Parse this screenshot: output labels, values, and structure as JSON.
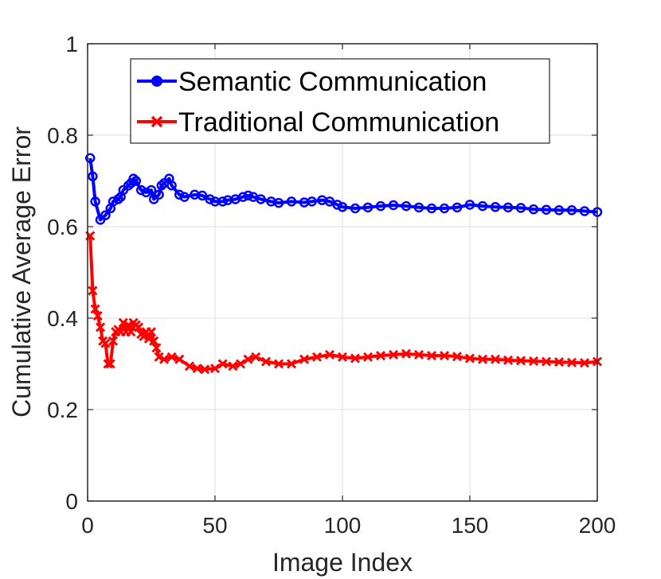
{
  "chart_data": {
    "type": "line",
    "xlabel": "Image Index",
    "ylabel": "Cumulative Average Error",
    "xlim": [
      0,
      200
    ],
    "ylim": [
      0,
      1
    ],
    "xticks": [
      0,
      50,
      100,
      150,
      200
    ],
    "xtick_labels": [
      "0",
      "50",
      "100",
      "150",
      "200"
    ],
    "yticks": [
      0,
      0.2,
      0.4,
      0.6,
      0.8,
      1
    ],
    "ytick_labels": [
      "0",
      "0.2",
      "0.4",
      "0.6",
      "0.8",
      "1"
    ],
    "grid": true,
    "legend_position": "top-center",
    "series": [
      {
        "name": "Semantic Communication",
        "color": "#0000ff",
        "marker": "circle",
        "x": [
          1,
          2,
          3,
          5,
          7,
          9,
          10,
          12,
          13,
          14,
          16,
          17,
          18,
          19,
          21,
          23,
          25,
          26,
          28,
          29,
          30,
          32,
          33,
          36,
          38,
          42,
          45,
          48,
          50,
          53,
          55,
          58,
          61,
          63,
          65,
          68,
          72,
          75,
          80,
          85,
          88,
          92,
          95,
          98,
          100,
          105,
          110,
          115,
          120,
          125,
          130,
          135,
          140,
          145,
          150,
          155,
          160,
          165,
          170,
          175,
          180,
          185,
          190,
          195,
          200
        ],
        "values": [
          0.75,
          0.71,
          0.655,
          0.615,
          0.625,
          0.64,
          0.655,
          0.66,
          0.665,
          0.68,
          0.69,
          0.695,
          0.705,
          0.7,
          0.68,
          0.675,
          0.68,
          0.66,
          0.67,
          0.69,
          0.695,
          0.705,
          0.69,
          0.67,
          0.665,
          0.67,
          0.668,
          0.66,
          0.655,
          0.655,
          0.658,
          0.66,
          0.665,
          0.668,
          0.665,
          0.66,
          0.655,
          0.652,
          0.655,
          0.653,
          0.655,
          0.658,
          0.655,
          0.648,
          0.643,
          0.64,
          0.642,
          0.645,
          0.647,
          0.645,
          0.642,
          0.64,
          0.64,
          0.642,
          0.648,
          0.645,
          0.643,
          0.642,
          0.641,
          0.638,
          0.637,
          0.636,
          0.636,
          0.634,
          0.632
        ]
      },
      {
        "name": "Traditional Communication",
        "color": "#ff0000",
        "marker": "x",
        "x": [
          1,
          2,
          3,
          4,
          5,
          6,
          7,
          8,
          9,
          10,
          11,
          12,
          13,
          14,
          15,
          16,
          17,
          18,
          19,
          20,
          21,
          22,
          23,
          24,
          25,
          26,
          27,
          28,
          30,
          33,
          36,
          40,
          43,
          46,
          50,
          53,
          57,
          60,
          63,
          66,
          70,
          75,
          80,
          85,
          90,
          95,
          100,
          105,
          110,
          115,
          120,
          125,
          130,
          135,
          140,
          145,
          150,
          155,
          160,
          165,
          170,
          175,
          180,
          185,
          190,
          195,
          200
        ],
        "values": [
          0.58,
          0.46,
          0.42,
          0.405,
          0.38,
          0.35,
          0.345,
          0.3,
          0.3,
          0.35,
          0.37,
          0.375,
          0.37,
          0.39,
          0.37,
          0.385,
          0.37,
          0.39,
          0.385,
          0.38,
          0.365,
          0.36,
          0.37,
          0.355,
          0.37,
          0.35,
          0.335,
          0.315,
          0.31,
          0.315,
          0.31,
          0.295,
          0.29,
          0.288,
          0.29,
          0.3,
          0.295,
          0.3,
          0.31,
          0.315,
          0.305,
          0.3,
          0.3,
          0.31,
          0.315,
          0.32,
          0.315,
          0.312,
          0.315,
          0.318,
          0.32,
          0.322,
          0.32,
          0.318,
          0.318,
          0.316,
          0.312,
          0.31,
          0.31,
          0.308,
          0.307,
          0.306,
          0.305,
          0.304,
          0.303,
          0.302,
          0.305
        ]
      }
    ]
  }
}
